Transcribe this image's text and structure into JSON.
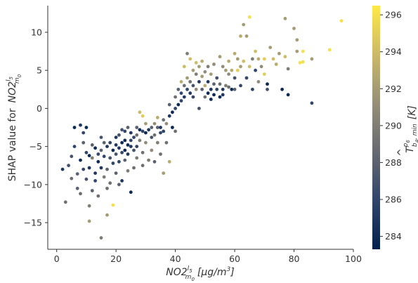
{
  "chart_data": {
    "type": "scatter",
    "title": "",
    "xlabel_main": "NO2",
    "xlabel_sup": "l",
    "xlabel_supsub": "5",
    "xlabel_sub": "m",
    "xlabel_subsub": "0",
    "xlabel_units": "[μg/m",
    "xlabel_units_exp": "3",
    "xlabel_units_close": "]",
    "ylabel_prefix": "SHAP value for",
    "ylabel_main": "NO2",
    "ylabel_sup": "l",
    "ylabel_supsub": "5",
    "ylabel_sub": "m",
    "ylabel_subsub": "0",
    "colorbar_label_main": "T",
    "colorbar_label_hat": "^",
    "colorbar_label_sup": "p",
    "colorbar_label_supsub": "6",
    "colorbar_label_sub": "b",
    "colorbar_label_subsub": "4",
    "colorbar_label_sub2": ", min",
    "colorbar_label_units": "[K]",
    "xlim": [
      -3,
      100
    ],
    "ylim": [
      -18.5,
      13.5
    ],
    "xticks": [
      0,
      20,
      40,
      60,
      80,
      100
    ],
    "yticks": [
      -15,
      -10,
      -5,
      0,
      5,
      10
    ],
    "color_range": [
      283.3,
      296.5
    ],
    "colorbar_ticks": [
      284,
      286,
      288,
      290,
      292,
      294,
      296
    ],
    "colormap": [
      "#00204c",
      "#31446b",
      "#666970",
      "#958f78",
      "#cbb969",
      "#ffe945"
    ],
    "grid": false,
    "legend": "none",
    "points": [
      [
        2,
        -8,
        285
      ],
      [
        3,
        -12.3,
        289
      ],
      [
        4,
        -7.5,
        287
      ],
      [
        5,
        -6.3,
        287
      ],
      [
        5,
        -9.2,
        289
      ],
      [
        6,
        -2.5,
        284
      ],
      [
        6,
        -5,
        286
      ],
      [
        7,
        -8.6,
        288
      ],
      [
        7,
        -10.5,
        288
      ],
      [
        8,
        -2.2,
        285
      ],
      [
        8,
        -6.8,
        284
      ],
      [
        8,
        -11.2,
        289
      ],
      [
        9,
        -3.2,
        286
      ],
      [
        9,
        -4.5,
        288
      ],
      [
        9,
        -8,
        286
      ],
      [
        10,
        -2.5,
        284
      ],
      [
        10,
        -5.8,
        286
      ],
      [
        10,
        -9.3,
        287
      ],
      [
        11,
        -6.2,
        284
      ],
      [
        11,
        -7.8,
        285
      ],
      [
        11,
        -12.8,
        290
      ],
      [
        11,
        -14.8,
        292
      ],
      [
        12,
        -4.8,
        288
      ],
      [
        12,
        -6.5,
        290
      ],
      [
        12,
        -10.8,
        288
      ],
      [
        13,
        -5.2,
        284
      ],
      [
        13,
        -8.5,
        285
      ],
      [
        13,
        -9.5,
        286
      ],
      [
        14,
        -6,
        286
      ],
      [
        14,
        -7,
        284
      ],
      [
        14,
        -11.5,
        289
      ],
      [
        15,
        -3.8,
        287
      ],
      [
        15,
        -5.5,
        288
      ],
      [
        15,
        -7.8,
        285
      ],
      [
        15,
        -17,
        290
      ],
      [
        16,
        -4.5,
        288
      ],
      [
        16,
        -6.3,
        286
      ],
      [
        16,
        -9,
        290
      ],
      [
        17,
        -5,
        285
      ],
      [
        17,
        -8,
        288
      ],
      [
        17,
        -10.5,
        289
      ],
      [
        17,
        -14,
        292
      ],
      [
        18,
        -4.5,
        286
      ],
      [
        18,
        -6.5,
        287
      ],
      [
        18,
        -9.8,
        289
      ],
      [
        19,
        -5.5,
        284
      ],
      [
        19,
        -7.2,
        286
      ],
      [
        19,
        -12.7,
        296
      ],
      [
        20,
        -3.8,
        285
      ],
      [
        20,
        -4.8,
        285
      ],
      [
        20,
        -6,
        287
      ],
      [
        20,
        -8.5,
        288
      ],
      [
        21,
        -3.5,
        287
      ],
      [
        21,
        -5.2,
        285
      ],
      [
        21,
        -7,
        286
      ],
      [
        21,
        -10,
        288
      ],
      [
        22,
        -2.8,
        287
      ],
      [
        22,
        -4.5,
        284
      ],
      [
        22,
        -5.8,
        286
      ],
      [
        22,
        -9.5,
        285
      ],
      [
        23,
        -3,
        286
      ],
      [
        23,
        -4.2,
        284
      ],
      [
        23,
        -5.5,
        284
      ],
      [
        23,
        -6.8,
        288
      ],
      [
        24,
        -2.5,
        288
      ],
      [
        24,
        -4.8,
        284
      ],
      [
        24,
        -6,
        285
      ],
      [
        24,
        -8.2,
        290
      ],
      [
        25,
        -3.2,
        285
      ],
      [
        25,
        -4.2,
        286
      ],
      [
        25,
        -5,
        285
      ],
      [
        25,
        -11,
        284
      ],
      [
        26,
        -3.8,
        286
      ],
      [
        26,
        -5.5,
        287
      ],
      [
        26,
        -7.8,
        289
      ],
      [
        27,
        -2.5,
        288
      ],
      [
        27,
        -3.5,
        289
      ],
      [
        27,
        -5,
        286
      ],
      [
        27,
        -6.5,
        290
      ],
      [
        28,
        -0.5,
        294
      ],
      [
        28,
        -2.8,
        284
      ],
      [
        28,
        -4.2,
        290
      ],
      [
        29,
        -1,
        295
      ],
      [
        29,
        -3,
        286
      ],
      [
        29,
        -5.8,
        289
      ],
      [
        29,
        -7.5,
        289
      ],
      [
        30,
        -2,
        292
      ],
      [
        30,
        -3.2,
        284
      ],
      [
        30,
        -4.5,
        291
      ],
      [
        31,
        -2.8,
        285
      ],
      [
        31,
        -6.8,
        290
      ],
      [
        32,
        -2.5,
        288
      ],
      [
        32,
        -3.8,
        287
      ],
      [
        32,
        -5.5,
        291
      ],
      [
        33,
        -2,
        291
      ],
      [
        33,
        -3.5,
        289
      ],
      [
        33,
        -7,
        288
      ],
      [
        34,
        -1.2,
        293
      ],
      [
        34,
        -2.5,
        288
      ],
      [
        34,
        -4.5,
        290
      ],
      [
        35,
        -2.5,
        285
      ],
      [
        35,
        -3.2,
        286
      ],
      [
        35,
        -6,
        289
      ],
      [
        36,
        -1.5,
        289
      ],
      [
        36,
        -3,
        286
      ],
      [
        36,
        -8.5,
        292
      ],
      [
        37,
        -2,
        291
      ],
      [
        37,
        -4.5,
        289
      ],
      [
        38,
        0.5,
        288
      ],
      [
        38,
        -1,
        285
      ],
      [
        38,
        -7,
        293
      ],
      [
        39,
        -0.5,
        284
      ],
      [
        39,
        -2.5,
        284
      ],
      [
        40,
        1.5,
        289
      ],
      [
        40,
        0,
        286
      ],
      [
        40,
        -3,
        289
      ],
      [
        41,
        2.5,
        288
      ],
      [
        41,
        0.5,
        284
      ],
      [
        42,
        3.5,
        293
      ],
      [
        42,
        2,
        286
      ],
      [
        42,
        1,
        286
      ],
      [
        43,
        5.5,
        294
      ],
      [
        43,
        3,
        289
      ],
      [
        43,
        1.5,
        285
      ],
      [
        44,
        7.2,
        290
      ],
      [
        44,
        4,
        292
      ],
      [
        44,
        2.5,
        286
      ],
      [
        45,
        6.5,
        294
      ],
      [
        45,
        3.5,
        289
      ],
      [
        45,
        2,
        285
      ],
      [
        46,
        5,
        292
      ],
      [
        46,
        3,
        287
      ],
      [
        46,
        1.5,
        286
      ],
      [
        47,
        6,
        294
      ],
      [
        47,
        4.5,
        290
      ],
      [
        47,
        2.5,
        291
      ],
      [
        48,
        5.5,
        292
      ],
      [
        48,
        3.5,
        285
      ],
      [
        48,
        0,
        287
      ],
      [
        49,
        6.2,
        293
      ],
      [
        49,
        4.2,
        292
      ],
      [
        49,
        2.5,
        288
      ],
      [
        50,
        4.8,
        291
      ],
      [
        50,
        3,
        293
      ],
      [
        50,
        1.5,
        289
      ],
      [
        51,
        5.5,
        290
      ],
      [
        51,
        3.5,
        285
      ],
      [
        51,
        2,
        284
      ],
      [
        52,
        4.5,
        292
      ],
      [
        52,
        2.5,
        285
      ],
      [
        52,
        1.2,
        284
      ],
      [
        53,
        5.8,
        291
      ],
      [
        53,
        3.2,
        288
      ],
      [
        53,
        1.8,
        284
      ],
      [
        54,
        4,
        287
      ],
      [
        54,
        2.5,
        286
      ],
      [
        55,
        6.8,
        292
      ],
      [
        55,
        3.2,
        289
      ],
      [
        55,
        1.5,
        284
      ],
      [
        56,
        5.5,
        291
      ],
      [
        56,
        2.5,
        285
      ],
      [
        56,
        1.8,
        285
      ],
      [
        57,
        5,
        292
      ],
      [
        57,
        3,
        290
      ],
      [
        58,
        6.2,
        293
      ],
      [
        58,
        4.5,
        291
      ],
      [
        58,
        2.8,
        289
      ],
      [
        59,
        5,
        293
      ],
      [
        59,
        2.5,
        284
      ],
      [
        60,
        7.2,
        293
      ],
      [
        60,
        4,
        287
      ],
      [
        60,
        2.5,
        288
      ],
      [
        61,
        6.5,
        292
      ],
      [
        61,
        5,
        295
      ],
      [
        62,
        9.5,
        293
      ],
      [
        62,
        5.5,
        292
      ],
      [
        62,
        3,
        286
      ],
      [
        63,
        11,
        292
      ],
      [
        63,
        6.2,
        294
      ],
      [
        64,
        9.5,
        292
      ],
      [
        64,
        4,
        286
      ],
      [
        65,
        12,
        296
      ],
      [
        65,
        5.5,
        294
      ],
      [
        66,
        6.5,
        290
      ],
      [
        66,
        2.5,
        286
      ],
      [
        67,
        7.5,
        294
      ],
      [
        67,
        5,
        286
      ],
      [
        68,
        6.5,
        293
      ],
      [
        68,
        3.5,
        291
      ],
      [
        69,
        5.5,
        291
      ],
      [
        70,
        6.5,
        295
      ],
      [
        70,
        4.5,
        295
      ],
      [
        71,
        2.5,
        287
      ],
      [
        71,
        3.2,
        284
      ],
      [
        72,
        8,
        292
      ],
      [
        73,
        6.5,
        294
      ],
      [
        74,
        5.8,
        293
      ],
      [
        75,
        7.2,
        292
      ],
      [
        76,
        2.5,
        284
      ],
      [
        77,
        11.8,
        292
      ],
      [
        77,
        6.8,
        294
      ],
      [
        78,
        5.2,
        290
      ],
      [
        78,
        1.8,
        284
      ],
      [
        80,
        10.5,
        292
      ],
      [
        81,
        9,
        292
      ],
      [
        81,
        7.5,
        292
      ],
      [
        82,
        6,
        296
      ],
      [
        83,
        7.5,
        296
      ],
      [
        83,
        6.1,
        296
      ],
      [
        86,
        0.7,
        286
      ],
      [
        86,
        6.5,
        292
      ],
      [
        92,
        7.7,
        296
      ],
      [
        96,
        11.5,
        296
      ]
    ]
  }
}
